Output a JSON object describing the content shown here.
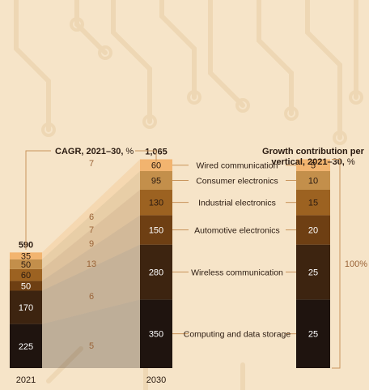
{
  "colors": {
    "background": "#f6e4c8",
    "circuit": "#eed7b4",
    "segments": [
      "#1f140f",
      "#3d2410",
      "#6e3f13",
      "#9c6221",
      "#c38f4b",
      "#f2b46f"
    ],
    "connector": "#c8935b",
    "text_dark": "#2a1a10",
    "text_light": "#ffffff",
    "cagr_text": "#9a6438"
  },
  "chart_data": {
    "type": "bar",
    "subtype": "stacked",
    "categories": [
      "2021",
      "2030"
    ],
    "totals": [
      "590",
      "1,065"
    ],
    "series": [
      {
        "name": "Computing and data storage",
        "values": [
          225,
          350
        ],
        "cagr": "5",
        "contribution": "25"
      },
      {
        "name": "Wireless communication",
        "values": [
          170,
          280
        ],
        "cagr": "6",
        "contribution": "25"
      },
      {
        "name": "Automotive electronics",
        "values": [
          50,
          150
        ],
        "cagr": "13",
        "contribution": "20"
      },
      {
        "name": "Industrial electronics",
        "values": [
          60,
          130
        ],
        "cagr": "9",
        "contribution": "15"
      },
      {
        "name": "Consumer electronics",
        "values": [
          50,
          95
        ],
        "cagr": "7",
        "contribution": "10"
      },
      {
        "name": "Wired communication",
        "values": [
          35,
          60
        ],
        "cagr": "6",
        "contribution": "5"
      }
    ],
    "cagr_total": "7",
    "cagr_title": "CAGR, 2021–30,",
    "cagr_unit": "%",
    "contribution_title_line1": "Growth contribution per",
    "contribution_title_line2": "vertical, 2021–30,",
    "contribution_unit": "%",
    "contribution_total": "100%"
  }
}
